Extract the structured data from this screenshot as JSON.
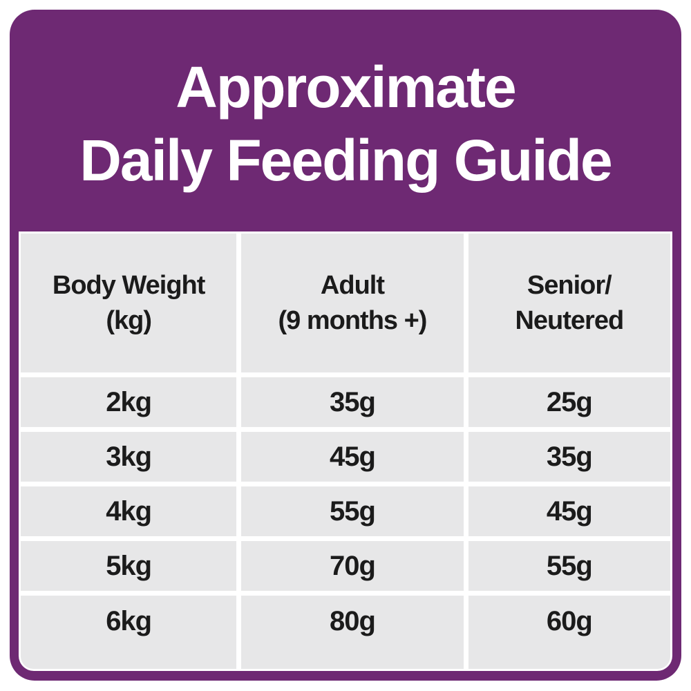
{
  "colors": {
    "purple": "#6E2973",
    "cell_gray": "#E7E7E8",
    "ink": "#1B1B1B",
    "background": "#FFFFFF",
    "title_text": "#FFFFFF"
  },
  "header": {
    "title_line1": "Approximate",
    "title_line2": "Daily Feeding Guide"
  },
  "table": {
    "columns": [
      {
        "key": "body-weight",
        "label": "Body Weight\n(kg)"
      },
      {
        "key": "adult",
        "label": "Adult\n(9 months +)"
      },
      {
        "key": "senior-neutered",
        "label": "Senior/\nNeutered"
      }
    ],
    "rows": [
      [
        "2kg",
        "35g",
        "25g"
      ],
      [
        "3kg",
        "45g",
        "35g"
      ],
      [
        "4kg",
        "55g",
        "45g"
      ],
      [
        "5kg",
        "70g",
        "55g"
      ],
      [
        "6kg",
        "80g",
        "60g"
      ]
    ]
  },
  "chart_data": {
    "type": "table",
    "title": "Approximate Daily Feeding Guide",
    "columns": [
      "Body Weight (kg)",
      "Adult (9 months +)",
      "Senior/Neutered"
    ],
    "rows": [
      [
        "2kg",
        "35g",
        "25g"
      ],
      [
        "3kg",
        "45g",
        "35g"
      ],
      [
        "4kg",
        "55g",
        "45g"
      ],
      [
        "5kg",
        "70g",
        "55g"
      ],
      [
        "6kg",
        "80g",
        "60g"
      ]
    ]
  }
}
